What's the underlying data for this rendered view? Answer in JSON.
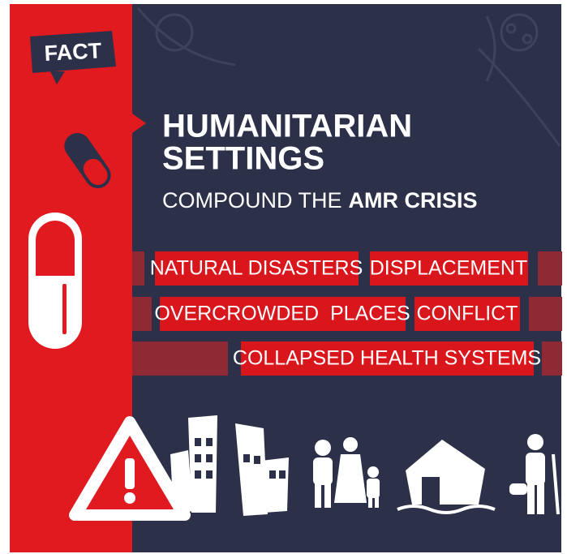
{
  "badge": "FACT",
  "title": {
    "line1": "HUMANITARIAN",
    "line2": "SETTINGS"
  },
  "subtitle": {
    "plain": "COMPOUND THE",
    "bold": "AMR CRISIS"
  },
  "tags": [
    "NATURAL DISASTERS",
    "DISPLACEMENT",
    "OVERCROWDED  PLACES",
    "CONFLICT",
    "COLLAPSED HEALTH SYSTEMS"
  ]
}
